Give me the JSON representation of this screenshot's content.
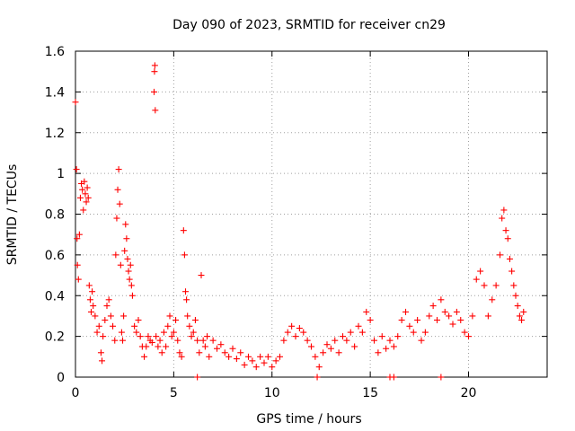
{
  "chart_data": {
    "type": "scatter",
    "title": "Day 090 of 2023, SRMTID for receiver cn29",
    "xlabel": "GPS time / hours",
    "ylabel": "SRMTID / TECUs",
    "xlim": [
      0,
      24
    ],
    "ylim": [
      0,
      1.6
    ],
    "x_ticks": [
      0,
      5,
      10,
      15,
      20
    ],
    "y_ticks": [
      0,
      0.2,
      0.4,
      0.6,
      0.8,
      1,
      1.2,
      1.4,
      1.6
    ],
    "x_tick_labels": [
      "0",
      "5",
      "10",
      "15",
      "20"
    ],
    "y_tick_labels": [
      "0",
      "0.2",
      "0.4",
      "0.6",
      "0.8",
      "1",
      "1.2",
      "1.4",
      "1.6"
    ],
    "grid": true,
    "marker": "plus",
    "color": "#ff0000",
    "series": [
      {
        "name": "SRMTID",
        "points": [
          [
            0.0,
            1.35
          ],
          [
            0.05,
            1.02
          ],
          [
            0.08,
            0.68
          ],
          [
            0.1,
            0.55
          ],
          [
            0.15,
            0.48
          ],
          [
            0.2,
            0.7
          ],
          [
            0.25,
            0.88
          ],
          [
            0.3,
            0.95
          ],
          [
            0.35,
            0.92
          ],
          [
            0.4,
            0.82
          ],
          [
            0.45,
            0.96
          ],
          [
            0.5,
            0.9
          ],
          [
            0.55,
            0.86
          ],
          [
            0.6,
            0.93
          ],
          [
            0.65,
            0.88
          ],
          [
            0.7,
            0.45
          ],
          [
            0.75,
            0.38
          ],
          [
            0.8,
            0.32
          ],
          [
            0.85,
            0.42
          ],
          [
            0.9,
            0.35
          ],
          [
            1.0,
            0.3
          ],
          [
            1.1,
            0.22
          ],
          [
            1.2,
            0.25
          ],
          [
            1.3,
            0.12
          ],
          [
            1.35,
            0.08
          ],
          [
            1.4,
            0.2
          ],
          [
            1.5,
            0.28
          ],
          [
            1.6,
            0.35
          ],
          [
            1.7,
            0.38
          ],
          [
            1.8,
            0.3
          ],
          [
            1.9,
            0.25
          ],
          [
            2.0,
            0.18
          ],
          [
            2.05,
            0.6
          ],
          [
            2.1,
            0.78
          ],
          [
            2.15,
            0.92
          ],
          [
            2.2,
            1.02
          ],
          [
            2.25,
            0.85
          ],
          [
            2.3,
            0.55
          ],
          [
            2.35,
            0.22
          ],
          [
            2.4,
            0.18
          ],
          [
            2.45,
            0.3
          ],
          [
            2.5,
            0.62
          ],
          [
            2.55,
            0.75
          ],
          [
            2.6,
            0.68
          ],
          [
            2.65,
            0.58
          ],
          [
            2.7,
            0.52
          ],
          [
            2.75,
            0.48
          ],
          [
            2.8,
            0.55
          ],
          [
            2.85,
            0.45
          ],
          [
            2.9,
            0.4
          ],
          [
            3.0,
            0.25
          ],
          [
            3.1,
            0.22
          ],
          [
            3.2,
            0.28
          ],
          [
            3.3,
            0.2
          ],
          [
            3.4,
            0.15
          ],
          [
            3.5,
            0.1
          ],
          [
            3.6,
            0.15
          ],
          [
            3.7,
            0.2
          ],
          [
            3.8,
            0.18
          ],
          [
            3.9,
            0.17
          ],
          [
            4.0,
            1.4
          ],
          [
            4.02,
            1.5
          ],
          [
            4.04,
            1.53
          ],
          [
            4.06,
            1.31
          ],
          [
            4.1,
            0.2
          ],
          [
            4.2,
            0.15
          ],
          [
            4.3,
            0.18
          ],
          [
            4.4,
            0.12
          ],
          [
            4.5,
            0.22
          ],
          [
            4.6,
            0.15
          ],
          [
            4.7,
            0.25
          ],
          [
            4.8,
            0.3
          ],
          [
            4.9,
            0.2
          ],
          [
            5.0,
            0.22
          ],
          [
            5.1,
            0.28
          ],
          [
            5.2,
            0.18
          ],
          [
            5.3,
            0.12
          ],
          [
            5.4,
            0.1
          ],
          [
            5.5,
            0.72
          ],
          [
            5.55,
            0.6
          ],
          [
            5.6,
            0.42
          ],
          [
            5.65,
            0.38
          ],
          [
            5.7,
            0.3
          ],
          [
            5.8,
            0.25
          ],
          [
            5.9,
            0.2
          ],
          [
            6.0,
            0.22
          ],
          [
            6.1,
            0.28
          ],
          [
            6.2,
            0.18
          ],
          [
            6.3,
            0.12
          ],
          [
            6.4,
            0.5
          ],
          [
            6.5,
            0.18
          ],
          [
            6.6,
            0.15
          ],
          [
            6.7,
            0.2
          ],
          [
            6.8,
            0.1
          ],
          [
            7.0,
            0.18
          ],
          [
            7.2,
            0.14
          ],
          [
            7.4,
            0.16
          ],
          [
            7.6,
            0.12
          ],
          [
            7.8,
            0.1
          ],
          [
            8.0,
            0.14
          ],
          [
            8.2,
            0.09
          ],
          [
            8.4,
            0.12
          ],
          [
            8.6,
            0.06
          ],
          [
            8.8,
            0.1
          ],
          [
            9.0,
            0.08
          ],
          [
            9.2,
            0.05
          ],
          [
            9.4,
            0.1
          ],
          [
            9.6,
            0.07
          ],
          [
            9.8,
            0.1
          ],
          [
            10.0,
            0.05
          ],
          [
            10.2,
            0.08
          ],
          [
            10.4,
            0.1
          ],
          [
            10.6,
            0.18
          ],
          [
            10.8,
            0.22
          ],
          [
            11.0,
            0.25
          ],
          [
            11.2,
            0.2
          ],
          [
            11.4,
            0.24
          ],
          [
            11.6,
            0.22
          ],
          [
            11.8,
            0.18
          ],
          [
            12.0,
            0.15
          ],
          [
            12.2,
            0.1
          ],
          [
            12.4,
            0.05
          ],
          [
            12.6,
            0.12
          ],
          [
            12.8,
            0.16
          ],
          [
            13.0,
            0.14
          ],
          [
            13.2,
            0.18
          ],
          [
            13.4,
            0.12
          ],
          [
            13.6,
            0.2
          ],
          [
            13.8,
            0.18
          ],
          [
            14.0,
            0.22
          ],
          [
            14.2,
            0.15
          ],
          [
            14.4,
            0.25
          ],
          [
            14.6,
            0.22
          ],
          [
            14.8,
            0.32
          ],
          [
            15.0,
            0.28
          ],
          [
            15.2,
            0.18
          ],
          [
            15.4,
            0.12
          ],
          [
            15.6,
            0.2
          ],
          [
            15.8,
            0.14
          ],
          [
            16.0,
            0.18
          ],
          [
            16.2,
            0.15
          ],
          [
            16.4,
            0.2
          ],
          [
            16.6,
            0.28
          ],
          [
            16.8,
            0.32
          ],
          [
            17.0,
            0.25
          ],
          [
            17.2,
            0.22
          ],
          [
            17.4,
            0.28
          ],
          [
            17.6,
            0.18
          ],
          [
            17.8,
            0.22
          ],
          [
            18.0,
            0.3
          ],
          [
            18.2,
            0.35
          ],
          [
            18.4,
            0.28
          ],
          [
            18.6,
            0.38
          ],
          [
            18.8,
            0.32
          ],
          [
            19.0,
            0.3
          ],
          [
            19.2,
            0.26
          ],
          [
            19.4,
            0.32
          ],
          [
            19.6,
            0.28
          ],
          [
            19.8,
            0.22
          ],
          [
            20.0,
            0.2
          ],
          [
            20.2,
            0.3
          ],
          [
            20.4,
            0.48
          ],
          [
            20.6,
            0.52
          ],
          [
            20.8,
            0.45
          ],
          [
            21.0,
            0.3
          ],
          [
            21.2,
            0.38
          ],
          [
            21.4,
            0.45
          ],
          [
            21.6,
            0.6
          ],
          [
            21.7,
            0.78
          ],
          [
            21.8,
            0.82
          ],
          [
            21.9,
            0.72
          ],
          [
            22.0,
            0.68
          ],
          [
            22.1,
            0.58
          ],
          [
            22.2,
            0.52
          ],
          [
            22.3,
            0.45
          ],
          [
            22.4,
            0.4
          ],
          [
            22.5,
            0.35
          ],
          [
            22.6,
            0.3
          ],
          [
            22.7,
            0.28
          ],
          [
            22.8,
            0.32
          ]
        ]
      }
    ],
    "zero_markers_x": [
      6.2,
      12.3,
      16.0,
      16.2,
      18.6
    ]
  }
}
